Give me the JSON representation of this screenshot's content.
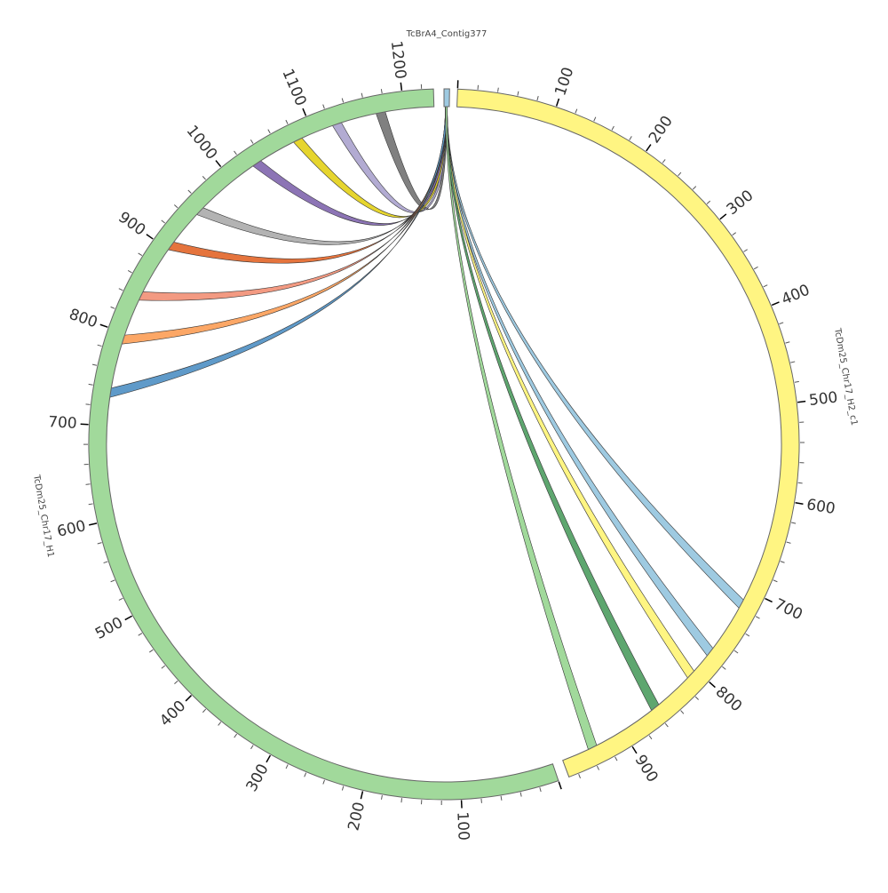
{
  "chromosomes": [
    {
      "name": "TcBrA4_Contig377",
      "color": "#9ecae1",
      "start_deg": 0.0,
      "end_deg": 0.9,
      "length": 70,
      "ticks": []
    },
    {
      "name": "TcDm25_Chr17_H2_c1",
      "color": "#fff582",
      "start_deg": 2.2,
      "end_deg": 159.4,
      "length": 970,
      "ticks": [
        "100",
        "200",
        "300",
        "400",
        "500",
        "600",
        "700",
        "800",
        "900"
      ]
    },
    {
      "name": "TcDm25_Chr17_H1",
      "color": "#a1d99b",
      "start_deg": 161.2,
      "end_deg": 358.3,
      "length": 1232,
      "ticks": [
        "100",
        "200",
        "300",
        "400",
        "500",
        "600",
        "700",
        "800",
        "900",
        "1000",
        "1100",
        "1200"
      ]
    }
  ],
  "links": [
    {
      "target": "TcDm25_Chr17_H1",
      "pos": 1175,
      "color": "#808080"
    },
    {
      "target": "TcDm25_Chr17_H1",
      "pos": 1127,
      "color": "#b2abd2"
    },
    {
      "target": "TcDm25_Chr17_H1",
      "pos": 1082,
      "color": "#e6d52e"
    },
    {
      "target": "TcDm25_Chr17_H1",
      "pos": 1032,
      "color": "#8c74b5"
    },
    {
      "target": "TcDm25_Chr17_H1",
      "pos": 953,
      "color": "#b3b3b3"
    },
    {
      "target": "TcDm25_Chr17_H1",
      "pos": 905,
      "color": "#e5743d"
    },
    {
      "target": "TcDm25_Chr17_H1",
      "pos": 843,
      "color": "#f39a82"
    },
    {
      "target": "TcDm25_Chr17_H1",
      "pos": 793,
      "color": "#fca766"
    },
    {
      "target": "TcDm25_Chr17_H1",
      "pos": 735,
      "color": "#5f9ac9"
    },
    {
      "target": "TcDm25_Chr17_H2_c1",
      "pos": 716,
      "color": "#9ecae1"
    },
    {
      "target": "TcDm25_Chr17_H2_c1",
      "pos": 776,
      "color": "#9ecae1"
    },
    {
      "target": "TcDm25_Chr17_H2_c1",
      "pos": 807,
      "color": "#fff582"
    },
    {
      "target": "TcDm25_Chr17_H2_c1",
      "pos": 858,
      "color": "#5ea66f"
    },
    {
      "target": "TcDm25_Chr17_H2_c1",
      "pos": 936,
      "color": "#a1d99b"
    }
  ]
}
